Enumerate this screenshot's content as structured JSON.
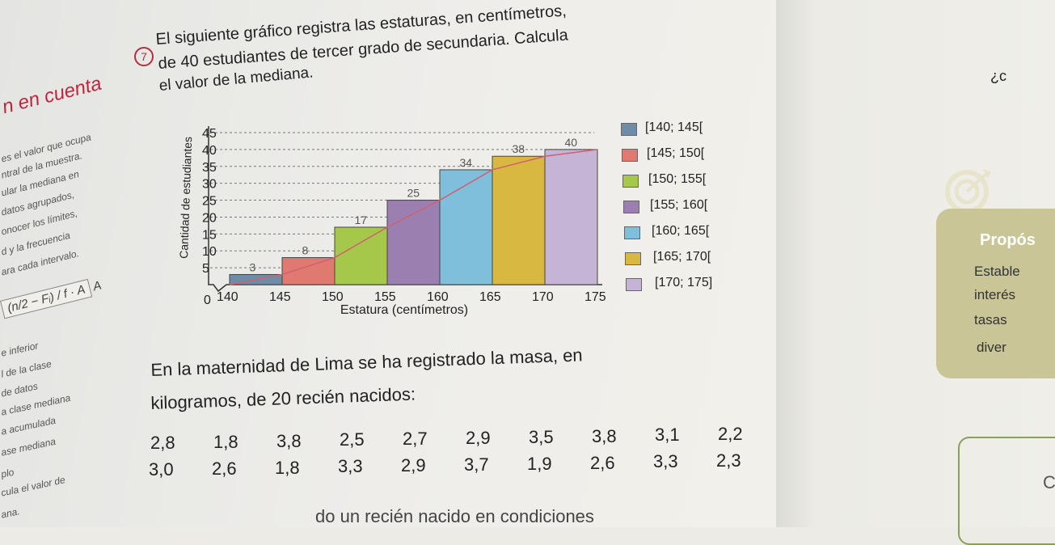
{
  "question": {
    "number": "7",
    "line1": "El siguiente gráfico registra las estaturas, en centímetros,",
    "line2": "de 40 estudiantes de tercer grado de secundaria. Calcula",
    "line3": "el valor de la mediana."
  },
  "sidebar": {
    "title": "n en cuenta",
    "lines": [
      "es el valor que ocupa",
      "ntral de la muestra.",
      "ular la mediana en",
      "datos agrupados,",
      "onocer los límites,",
      "d y la frecuencia",
      "ara cada intervalo."
    ],
    "formula": "(n/2 − Fᵢ) / f · A",
    "lower_lines": [
      "e inferior",
      "l de la clase",
      "de datos",
      "a clase mediana",
      "a acumulada",
      "ase mediana",
      "plo",
      "cula el valor de",
      "ana."
    ]
  },
  "chart_data": {
    "type": "bar",
    "title": "",
    "xlabel": "Estatura (centímetros)",
    "ylabel": "Cantidad de estudiantes",
    "x_ticks": [
      140,
      145,
      150,
      155,
      160,
      165,
      170,
      175
    ],
    "y_ticks": [
      0,
      5,
      10,
      15,
      20,
      25,
      30,
      35,
      40,
      45
    ],
    "ylim": [
      0,
      45
    ],
    "categories": [
      "[140; 145[",
      "[145; 150[",
      "[150; 155[",
      "[155; 160[",
      "[160; 165[",
      "[165; 170[",
      "[170; 175]"
    ],
    "values": [
      3,
      8,
      17,
      25,
      34,
      38,
      40
    ],
    "colors": [
      "#6f8ca6",
      "#e07a70",
      "#a6c84a",
      "#9a7fb0",
      "#7fbfdc",
      "#d8b840",
      "#c6b4d6"
    ],
    "legend_placement": "right",
    "grid": true
  },
  "problem2": {
    "line1": "En la maternidad de Lima se ha registrado la masa, en",
    "line2": "kilogramos, de 20 recién nacidos:",
    "row1": [
      "2,8",
      "1,8",
      "3,8",
      "2,5",
      "2,7",
      "2,9",
      "3,5",
      "3,8",
      "3,1",
      "2,2"
    ],
    "row2": [
      "3,0",
      "2,6",
      "1,8",
      "3,3",
      "2,9",
      "3,7",
      "1,9",
      "2,6",
      "3,3",
      "2,3"
    ],
    "bottom": "do un recién nacido en condiciones"
  },
  "right_page": {
    "top_fragment": "¿c",
    "tag_title": "Propós",
    "tag_lines": [
      "Estable",
      "interés",
      "tasas",
      "diver"
    ],
    "corner_fragment": "C"
  }
}
